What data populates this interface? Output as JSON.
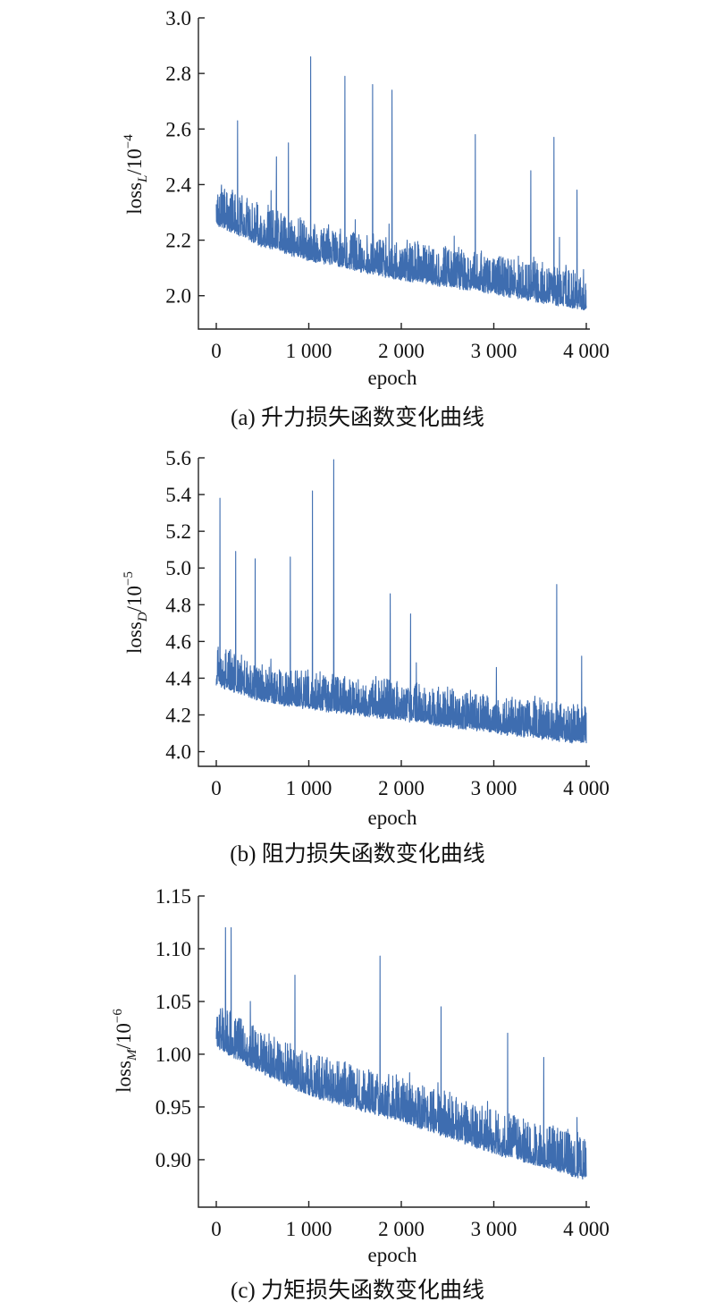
{
  "chart_data": [
    {
      "type": "line",
      "caption": "(a) 升力损失函数变化曲线",
      "xlabel": "epoch",
      "ylabel": {
        "base": "loss",
        "sub": "L",
        "unit": "/10",
        "exp": "−4"
      },
      "xlim": [
        0,
        4000
      ],
      "ylim": [
        1.88,
        3.0
      ],
      "xticks": [
        0,
        1000,
        2000,
        3000,
        4000
      ],
      "xtick_labels": [
        "0",
        "1 000",
        "2 000",
        "3 000",
        "4 000"
      ],
      "yticks": [
        2.0,
        2.2,
        2.4,
        2.6,
        2.8,
        3.0
      ],
      "ytick_labels": [
        "2.0",
        "2.2",
        "2.4",
        "2.6",
        "2.8",
        "3.0"
      ],
      "color": "#3e6db0",
      "trend": [
        [
          0,
          2.27
        ],
        [
          500,
          2.19
        ],
        [
          1000,
          2.14
        ],
        [
          2000,
          2.07
        ],
        [
          3000,
          2.02
        ],
        [
          4000,
          1.96
        ]
      ],
      "noise_band": 0.14,
      "spikes": [
        [
          230,
          2.63
        ],
        [
          650,
          2.5
        ],
        [
          780,
          2.55
        ],
        [
          1020,
          2.86
        ],
        [
          1390,
          2.79
        ],
        [
          1690,
          2.76
        ],
        [
          1900,
          2.74
        ],
        [
          2800,
          2.58
        ],
        [
          3400,
          2.45
        ],
        [
          3650,
          2.57
        ],
        [
          3900,
          2.38
        ]
      ]
    },
    {
      "type": "line",
      "caption": "(b) 阻力损失函数变化曲线",
      "xlabel": "epoch",
      "ylabel": {
        "base": "loss",
        "sub": "D",
        "unit": "/10",
        "exp": "−5"
      },
      "xlim": [
        0,
        4000
      ],
      "ylim": [
        3.92,
        5.6
      ],
      "xticks": [
        0,
        1000,
        2000,
        3000,
        4000
      ],
      "xtick_labels": [
        "0",
        "1 000",
        "2 000",
        "3 000",
        "4 000"
      ],
      "yticks": [
        4.0,
        4.2,
        4.4,
        4.6,
        4.8,
        5.0,
        5.2,
        5.4,
        5.6
      ],
      "ytick_labels": [
        "4.0",
        "4.2",
        "4.4",
        "4.6",
        "4.8",
        "5.0",
        "5.2",
        "5.4",
        "5.6"
      ],
      "color": "#3e6db0",
      "trend": [
        [
          0,
          4.38
        ],
        [
          500,
          4.29
        ],
        [
          1000,
          4.25
        ],
        [
          2000,
          4.19
        ],
        [
          3000,
          4.12
        ],
        [
          4000,
          4.06
        ]
      ],
      "noise_band": 0.2,
      "spikes": [
        [
          40,
          5.38
        ],
        [
          210,
          5.09
        ],
        [
          420,
          5.05
        ],
        [
          800,
          5.06
        ],
        [
          1040,
          5.42
        ],
        [
          1270,
          5.59
        ],
        [
          1880,
          4.86
        ],
        [
          2100,
          4.75
        ],
        [
          3680,
          4.91
        ],
        [
          3950,
          4.52
        ]
      ]
    },
    {
      "type": "line",
      "caption": "(c) 力矩损失函数变化曲线",
      "xlabel": "epoch",
      "ylabel": {
        "base": "loss",
        "sub": "M",
        "unit": "/10",
        "exp": "−6"
      },
      "xlim": [
        0,
        4000
      ],
      "ylim": [
        0.855,
        1.15
      ],
      "xticks": [
        0,
        1000,
        2000,
        3000,
        4000
      ],
      "xtick_labels": [
        "0",
        "1 000",
        "2 000",
        "3 000",
        "4 000"
      ],
      "yticks": [
        0.9,
        0.95,
        1.0,
        1.05,
        1.1,
        1.15
      ],
      "ytick_labels": [
        "0.90",
        "0.95",
        "1.00",
        "1.05",
        "1.10",
        "1.15"
      ],
      "color": "#3e6db0",
      "trend": [
        [
          0,
          1.01
        ],
        [
          500,
          0.985
        ],
        [
          1000,
          0.965
        ],
        [
          2000,
          0.94
        ],
        [
          3000,
          0.91
        ],
        [
          4000,
          0.885
        ]
      ],
      "noise_band": 0.04,
      "spikes": [
        [
          100,
          1.12
        ],
        [
          160,
          1.12
        ],
        [
          850,
          1.075
        ],
        [
          1770,
          1.093
        ],
        [
          2430,
          1.045
        ],
        [
          3150,
          1.02
        ],
        [
          3540,
          0.997
        ],
        [
          3900,
          0.94
        ]
      ]
    }
  ]
}
